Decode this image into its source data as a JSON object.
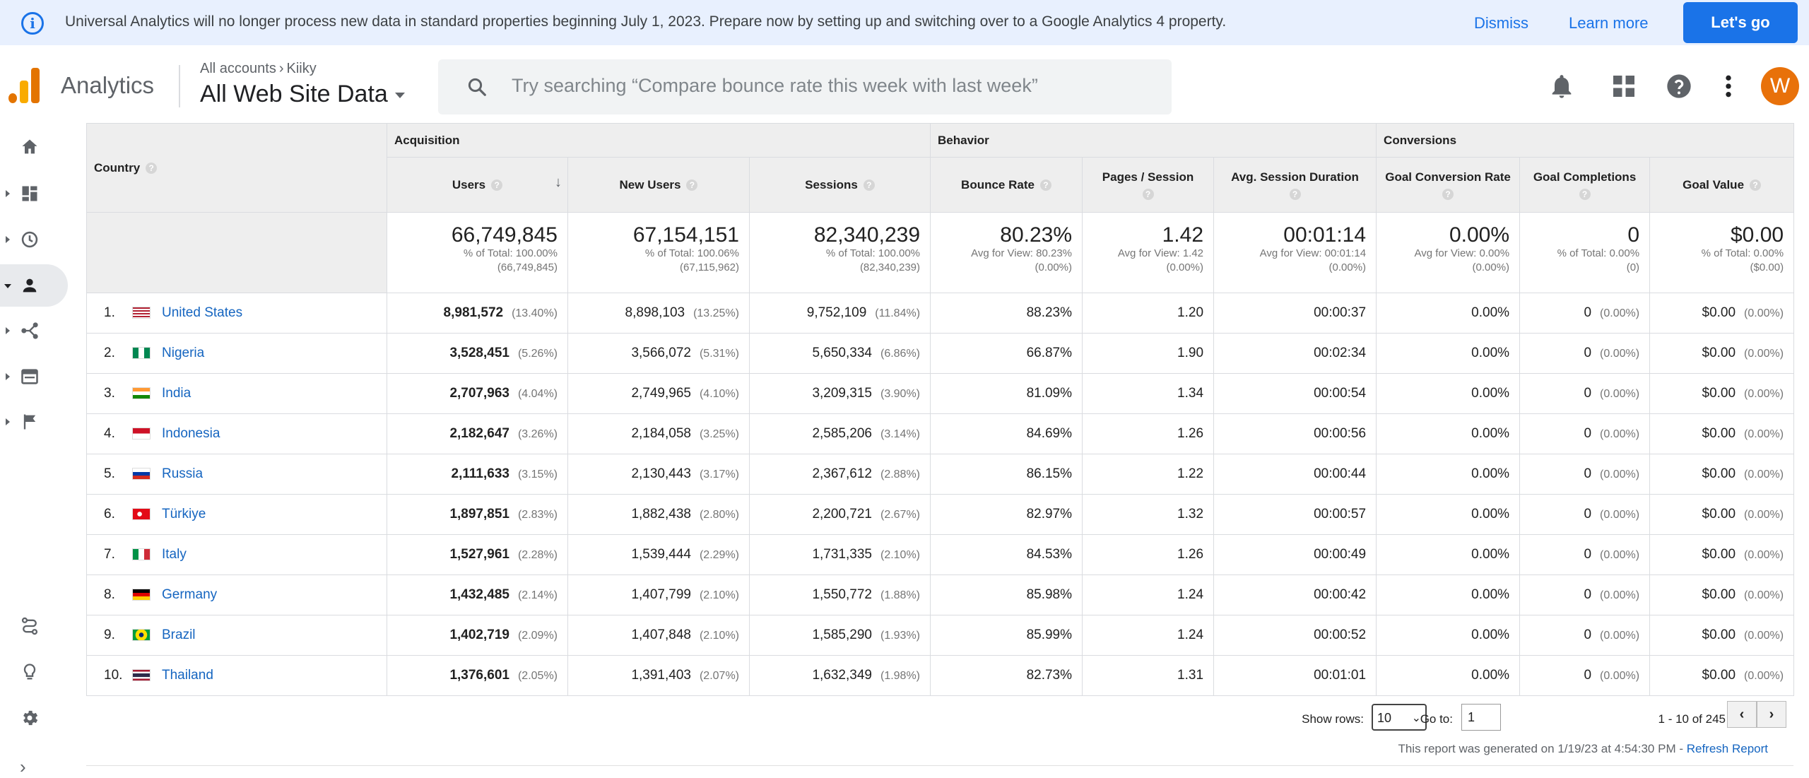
{
  "banner": {
    "message": "Universal Analytics will no longer process new data in standard properties beginning July 1, 2023. Prepare now by setting up and switching over to a Google Analytics 4 property.",
    "dismiss": "Dismiss",
    "learn_more": "Learn more",
    "cta": "Let's go"
  },
  "header": {
    "app_name": "Analytics",
    "breadcrumb_root": "All accounts",
    "breadcrumb_account": "Kiiky",
    "property": "All Web Site Data",
    "search_placeholder": "Try searching “Compare bounce rate this week with last week”",
    "avatar_letter": "W"
  },
  "colors": {
    "accent": "#1a73e8",
    "link": "#1565c0",
    "avatar": "#e8710a",
    "logo_orange": "#f9ab00",
    "logo_dark": "#e37400"
  },
  "nav_icons": [
    "home-icon",
    "customization-icon",
    "realtime-icon",
    "audience-icon",
    "acquisition-icon",
    "behavior-icon",
    "conversions-icon",
    "attribution-icon",
    "discover-icon",
    "admin-icon"
  ],
  "table": {
    "groups": {
      "acquisition": "Acquisition",
      "behavior": "Behavior",
      "conversions": "Conversions"
    },
    "columns": {
      "country": "Country",
      "users": "Users",
      "new_users": "New Users",
      "sessions": "Sessions",
      "bounce_rate": "Bounce Rate",
      "pages_session": "Pages / Session",
      "avg_duration": "Avg. Session Duration",
      "goal_conv_rate": "Goal Conversion Rate",
      "goal_completions": "Goal Completions",
      "goal_value": "Goal Value"
    },
    "totals": {
      "users": {
        "value": "66,749,845",
        "l1": "% of Total: 100.00%",
        "l2": "(66,749,845)"
      },
      "new_users": {
        "value": "67,154,151",
        "l1": "% of Total: 100.06%",
        "l2": "(67,115,962)"
      },
      "sessions": {
        "value": "82,340,239",
        "l1": "% of Total: 100.00%",
        "l2": "(82,340,239)"
      },
      "bounce_rate": {
        "value": "80.23%",
        "l1": "Avg for View: 80.23%",
        "l2": "(0.00%)"
      },
      "pages_session": {
        "value": "1.42",
        "l1": "Avg for View: 1.42",
        "l2": "(0.00%)"
      },
      "avg_duration": {
        "value": "00:01:14",
        "l1": "Avg for View: 00:01:14",
        "l2": "(0.00%)"
      },
      "goal_conv_rate": {
        "value": "0.00%",
        "l1": "Avg for View: 0.00%",
        "l2": "(0.00%)"
      },
      "goal_completions": {
        "value": "0",
        "l1": "% of Total: 0.00%",
        "l2": "(0)"
      },
      "goal_value": {
        "value": "$0.00",
        "l1": "% of Total: 0.00%",
        "l2": "($0.00)"
      }
    },
    "rows": [
      {
        "rank": "1.",
        "country": "United States",
        "flag": "us",
        "users": "8,981,572",
        "users_pct": "(13.40%)",
        "new_users": "8,898,103",
        "new_users_pct": "(13.25%)",
        "sessions": "9,752,109",
        "sessions_pct": "(11.84%)",
        "bounce": "88.23%",
        "pages": "1.20",
        "duration": "00:00:37",
        "conv": "0.00%",
        "completions": "0",
        "completions_pct": "(0.00%)",
        "value": "$0.00",
        "value_pct": "(0.00%)"
      },
      {
        "rank": "2.",
        "country": "Nigeria",
        "flag": "ng",
        "users": "3,528,451",
        "users_pct": "(5.26%)",
        "new_users": "3,566,072",
        "new_users_pct": "(5.31%)",
        "sessions": "5,650,334",
        "sessions_pct": "(6.86%)",
        "bounce": "66.87%",
        "pages": "1.90",
        "duration": "00:02:34",
        "conv": "0.00%",
        "completions": "0",
        "completions_pct": "(0.00%)",
        "value": "$0.00",
        "value_pct": "(0.00%)"
      },
      {
        "rank": "3.",
        "country": "India",
        "flag": "in",
        "users": "2,707,963",
        "users_pct": "(4.04%)",
        "new_users": "2,749,965",
        "new_users_pct": "(4.10%)",
        "sessions": "3,209,315",
        "sessions_pct": "(3.90%)",
        "bounce": "81.09%",
        "pages": "1.34",
        "duration": "00:00:54",
        "conv": "0.00%",
        "completions": "0",
        "completions_pct": "(0.00%)",
        "value": "$0.00",
        "value_pct": "(0.00%)"
      },
      {
        "rank": "4.",
        "country": "Indonesia",
        "flag": "id",
        "users": "2,182,647",
        "users_pct": "(3.26%)",
        "new_users": "2,184,058",
        "new_users_pct": "(3.25%)",
        "sessions": "2,585,206",
        "sessions_pct": "(3.14%)",
        "bounce": "84.69%",
        "pages": "1.26",
        "duration": "00:00:56",
        "conv": "0.00%",
        "completions": "0",
        "completions_pct": "(0.00%)",
        "value": "$0.00",
        "value_pct": "(0.00%)"
      },
      {
        "rank": "5.",
        "country": "Russia",
        "flag": "ru",
        "users": "2,111,633",
        "users_pct": "(3.15%)",
        "new_users": "2,130,443",
        "new_users_pct": "(3.17%)",
        "sessions": "2,367,612",
        "sessions_pct": "(2.88%)",
        "bounce": "86.15%",
        "pages": "1.22",
        "duration": "00:00:44",
        "conv": "0.00%",
        "completions": "0",
        "completions_pct": "(0.00%)",
        "value": "$0.00",
        "value_pct": "(0.00%)"
      },
      {
        "rank": "6.",
        "country": "Türkiye",
        "flag": "tr",
        "users": "1,897,851",
        "users_pct": "(2.83%)",
        "new_users": "1,882,438",
        "new_users_pct": "(2.80%)",
        "sessions": "2,200,721",
        "sessions_pct": "(2.67%)",
        "bounce": "82.97%",
        "pages": "1.32",
        "duration": "00:00:57",
        "conv": "0.00%",
        "completions": "0",
        "completions_pct": "(0.00%)",
        "value": "$0.00",
        "value_pct": "(0.00%)"
      },
      {
        "rank": "7.",
        "country": "Italy",
        "flag": "it",
        "users": "1,527,961",
        "users_pct": "(2.28%)",
        "new_users": "1,539,444",
        "new_users_pct": "(2.29%)",
        "sessions": "1,731,335",
        "sessions_pct": "(2.10%)",
        "bounce": "84.53%",
        "pages": "1.26",
        "duration": "00:00:49",
        "conv": "0.00%",
        "completions": "0",
        "completions_pct": "(0.00%)",
        "value": "$0.00",
        "value_pct": "(0.00%)"
      },
      {
        "rank": "8.",
        "country": "Germany",
        "flag": "de",
        "users": "1,432,485",
        "users_pct": "(2.14%)",
        "new_users": "1,407,799",
        "new_users_pct": "(2.10%)",
        "sessions": "1,550,772",
        "sessions_pct": "(1.88%)",
        "bounce": "85.98%",
        "pages": "1.24",
        "duration": "00:00:42",
        "conv": "0.00%",
        "completions": "0",
        "completions_pct": "(0.00%)",
        "value": "$0.00",
        "value_pct": "(0.00%)"
      },
      {
        "rank": "9.",
        "country": "Brazil",
        "flag": "br",
        "users": "1,402,719",
        "users_pct": "(2.09%)",
        "new_users": "1,407,848",
        "new_users_pct": "(2.10%)",
        "sessions": "1,585,290",
        "sessions_pct": "(1.93%)",
        "bounce": "85.99%",
        "pages": "1.24",
        "duration": "00:00:52",
        "conv": "0.00%",
        "completions": "0",
        "completions_pct": "(0.00%)",
        "value": "$0.00",
        "value_pct": "(0.00%)"
      },
      {
        "rank": "10.",
        "country": "Thailand",
        "flag": "th",
        "users": "1,376,601",
        "users_pct": "(2.05%)",
        "new_users": "1,391,403",
        "new_users_pct": "(2.07%)",
        "sessions": "1,632,349",
        "sessions_pct": "(1.98%)",
        "bounce": "82.73%",
        "pages": "1.31",
        "duration": "00:01:01",
        "conv": "0.00%",
        "completions": "0",
        "completions_pct": "(0.00%)",
        "value": "$0.00",
        "value_pct": "(0.00%)"
      }
    ]
  },
  "footer": {
    "show_rows_label": "Show rows:",
    "show_rows_value": "10",
    "goto_label": "Go to:",
    "goto_value": "1",
    "range": "1 - 10 of 245",
    "generated": "This report was generated on 1/19/23 at 4:54:30 PM - ",
    "refresh": "Refresh Report"
  }
}
